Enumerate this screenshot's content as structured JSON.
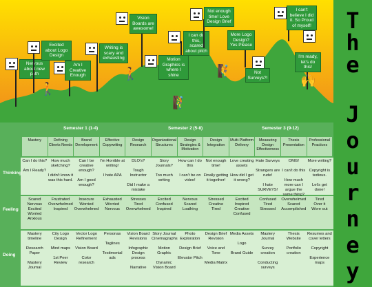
{
  "banner_letters": [
    "T",
    "h",
    "e",
    "J",
    "o",
    "u",
    "r",
    "n",
    "e",
    "y"
  ],
  "signs": [
    {
      "id": "nervous",
      "text": "Nervous about new path"
    },
    {
      "id": "excited-logo",
      "text": "Excited about Logo Design"
    },
    {
      "id": "creative-enough",
      "text": "Am I Creative Enough"
    },
    {
      "id": "writing-scary",
      "text": "Writing is scary and exhausting"
    },
    {
      "id": "vision-boards",
      "text": "Vision Boards are awesome!"
    },
    {
      "id": "motion-graphics",
      "text": "Motion Graphics is where I shine"
    },
    {
      "id": "cant-do-this",
      "text": "I can do this, scared about pitch"
    },
    {
      "id": "not-enough-time",
      "text": "Not enough time! Love Design Brief"
    },
    {
      "id": "more-logo",
      "text": "More Logo Design? Yes Please"
    },
    {
      "id": "not-surveys",
      "text": "Not Surveys?!"
    },
    {
      "id": "cant-believe",
      "text": "I can't believe I did it. So Proud of myself!"
    },
    {
      "id": "ready",
      "text": "I'm ready, let's do this!"
    }
  ],
  "semesters": [
    "Semester 1 (1-4)",
    "Semester 2 (5-8)",
    "Semester 3 (9-12)"
  ],
  "columns": [
    "Mastery",
    "Defining Clients Needs",
    "Brand Development",
    "Effective Copywriting",
    "Design Research",
    "Organizational Structures",
    "Design Strategies & Motivation",
    "Design Integration",
    "Multi-Platform Delivery",
    "Measuring Design Effectiveness",
    "Thesis Presentation",
    "Professional Practices"
  ],
  "rows": [
    {
      "label": "Thinking",
      "cells": [
        "Can I do this?\n\nAm I Ready?",
        "How much sketching?\n\nI didn't know it was this hard.",
        "Can I be creative enough?\n\nAm I good enough?",
        "I'm Horrible at writing!\n\nI hate APA",
        "DLO's?\n\nTough Instructor\n\nDid I make a mistake",
        "Story Journals?\n\nToo much writing",
        "How can I do this\n\nI can't be on video!",
        "Not enough time!\n\nFinally getting it together!",
        "Love creating assets\n\nHow did I get it wrong?",
        "Hate Surveys\n\nStrangers are rude!\n\nI hate SURVEYS!",
        "OMG!\n\nI can't do this\n\nHow much more can I argue the same thing?",
        "More writing?\n\nCopyright is tedious.\n\nLet's get done!"
      ]
    },
    {
      "label": "Feeling",
      "cells": [
        "Scared\nNervous\nExcited\nWorried\nAnxious",
        "Frustrated\nOverwhelmed\nInspired",
        "Insecure\nWorried\nOverwhelmed",
        "Exhausted\nWorried\nNervous",
        "Stresses\nTired\nOverwhelmed",
        "Excited\nConfused\nInspired",
        "Nervous\nScared\nLoathing",
        "Stressed\nCreative\nTired",
        "Excited\nInspired\nCreative\nConfused",
        "Confused\nTired\nStressed",
        "Overwhelmed\nScared\nAccomplished",
        "Tired\nOver it\nWore out"
      ]
    },
    {
      "label": "Doing",
      "cells": [
        "Mastery timeline\n\nResearch Paper\n\nMastery Journal",
        "City Logo Design\n\nMind maps\n\n1st Peer Review",
        "Vector Logo Refinement\n\nVision Board\n\nColor research",
        "Personas\n\nTaglines\n\nTestimonial ads",
        "Vision Board Revisions\n\nInfographic Design process\n\nNarrative",
        "Story Journal\nCinemagraphs\n\nMotion Graphic\n\nDynamic Vision Board",
        "Photo Exploration\n\nDesign Brief\n\nElevator Pitch",
        "Design Brief Revision\n\nVoice and Tone\n\nMedia Matrix",
        "Media Assets\n\nLogo\n\nBrand Guide",
        "Mastery Journal\n\nSurvey creation\n\nConducting surveys",
        "Thesis Website\n\nPortfolio creation",
        "Resumes and cover letters\n\nCopyright\n\nExperience maps"
      ]
    }
  ],
  "colors": {
    "sky_top": "#ffe000",
    "sky_bottom": "#f08a1c",
    "hill": "#3fa63c",
    "band": "#58b05a",
    "header": "#b9dfb5",
    "cell": "#d8efd3",
    "banner": "#3fa63c"
  }
}
